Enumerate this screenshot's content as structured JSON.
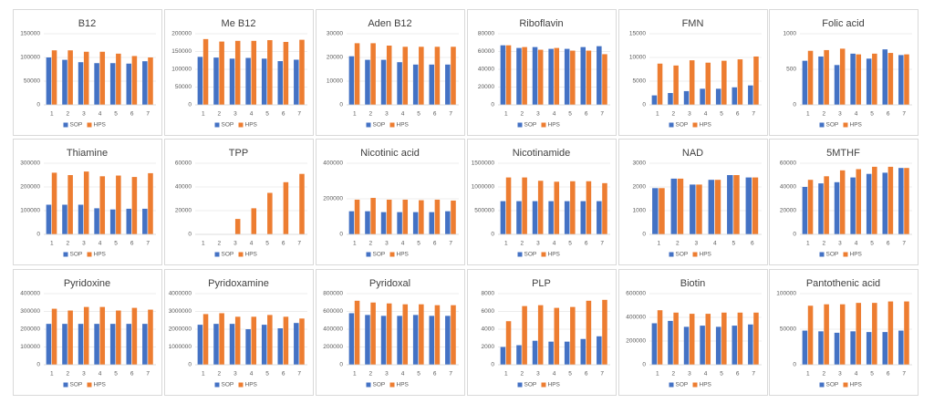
{
  "chart_data": [
    {
      "type": "bar",
      "title": "B12",
      "categories": [
        "1",
        "2",
        "3",
        "4",
        "5",
        "6",
        "7"
      ],
      "ylim": [
        0,
        150000
      ],
      "yticks": [
        0,
        50000,
        100000,
        150000
      ],
      "grid": true,
      "series": [
        {
          "name": "SOP",
          "color": "#4472c4",
          "values": [
            100000,
            95000,
            90000,
            88000,
            88000,
            87000,
            92000
          ]
        },
        {
          "name": "HPS",
          "color": "#ed7d31",
          "values": [
            115000,
            115000,
            112000,
            112000,
            108000,
            103000,
            100000
          ]
        }
      ]
    },
    {
      "type": "bar",
      "title": "Me B12",
      "categories": [
        "1",
        "2",
        "3",
        "4",
        "5",
        "6",
        "7"
      ],
      "ylim": [
        0,
        200000
      ],
      "yticks": [
        0,
        50000,
        100000,
        150000,
        200000
      ],
      "grid": true,
      "series": [
        {
          "name": "SOP",
          "color": "#4472c4",
          "values": [
            135000,
            133000,
            130000,
            132000,
            130000,
            123000,
            127000
          ]
        },
        {
          "name": "HPS",
          "color": "#ed7d31",
          "values": [
            185000,
            178000,
            180000,
            180000,
            182000,
            177000,
            183000
          ]
        }
      ]
    },
    {
      "type": "bar",
      "title": "Aden B12",
      "categories": [
        "1",
        "2",
        "3",
        "4",
        "5",
        "6",
        "7"
      ],
      "ylim": [
        0,
        30000
      ],
      "yticks": [
        0,
        10000,
        20000,
        30000
      ],
      "grid": true,
      "series": [
        {
          "name": "SOP",
          "color": "#4472c4",
          "values": [
            20500,
            19000,
            19000,
            18000,
            17000,
            17000,
            17000
          ]
        },
        {
          "name": "HPS",
          "color": "#ed7d31",
          "values": [
            26000,
            26000,
            25000,
            24500,
            24500,
            24500,
            24500
          ]
        }
      ]
    },
    {
      "type": "bar",
      "title": "Riboflavin",
      "categories": [
        "1",
        "2",
        "3",
        "4",
        "5",
        "6",
        "7"
      ],
      "ylim": [
        0,
        80000
      ],
      "yticks": [
        0,
        20000,
        40000,
        60000,
        80000
      ],
      "grid": true,
      "series": [
        {
          "name": "SOP",
          "color": "#4472c4",
          "values": [
            67000,
            64000,
            65000,
            63000,
            63000,
            65000,
            66000
          ]
        },
        {
          "name": "HPS",
          "color": "#ed7d31",
          "values": [
            67000,
            65000,
            62000,
            64000,
            61000,
            61000,
            57000
          ]
        }
      ]
    },
    {
      "type": "bar",
      "title": "FMN",
      "categories": [
        "1",
        "2",
        "3",
        "4",
        "5",
        "6",
        "7"
      ],
      "ylim": [
        0,
        15000
      ],
      "yticks": [
        0,
        5000,
        10000,
        15000
      ],
      "grid": true,
      "series": [
        {
          "name": "SOP",
          "color": "#4472c4",
          "values": [
            2000,
            2500,
            2900,
            3400,
            3400,
            3700,
            4100
          ]
        },
        {
          "name": "HPS",
          "color": "#ed7d31",
          "values": [
            8700,
            8300,
            9400,
            8900,
            9300,
            9600,
            10200
          ]
        }
      ]
    },
    {
      "type": "bar",
      "title": "Folic acid",
      "categories": [
        "1",
        "2",
        "3",
        "4",
        "5",
        "6",
        "7"
      ],
      "ylim": [
        0,
        1000
      ],
      "yticks": [
        0,
        500,
        1000
      ],
      "grid": true,
      "series": [
        {
          "name": "SOP",
          "color": "#4472c4",
          "values": [
            620,
            680,
            560,
            720,
            650,
            780,
            700
          ]
        },
        {
          "name": "HPS",
          "color": "#ed7d31",
          "values": [
            760,
            770,
            790,
            710,
            720,
            730,
            710
          ]
        }
      ]
    },
    {
      "type": "bar",
      "title": "Thiamine",
      "categories": [
        "1",
        "2",
        "3",
        "4",
        "5",
        "6",
        "7"
      ],
      "ylim": [
        0,
        300000
      ],
      "yticks": [
        0,
        100000,
        200000,
        300000
      ],
      "grid": true,
      "series": [
        {
          "name": "SOP",
          "color": "#4472c4",
          "values": [
            125000,
            125000,
            125000,
            110000,
            105000,
            108000,
            108000
          ]
        },
        {
          "name": "HPS",
          "color": "#ed7d31",
          "values": [
            260000,
            250000,
            265000,
            245000,
            248000,
            242000,
            258000
          ]
        }
      ]
    },
    {
      "type": "bar",
      "title": "TPP",
      "categories": [
        "1",
        "2",
        "3",
        "4",
        "5",
        "6",
        "7"
      ],
      "ylim": [
        0,
        60000
      ],
      "yticks": [
        0,
        20000,
        40000,
        60000
      ],
      "grid": true,
      "series": [
        {
          "name": "SOP",
          "color": "#4472c4",
          "values": [
            0,
            0,
            0,
            0,
            0,
            0,
            0
          ]
        },
        {
          "name": "HPS",
          "color": "#ed7d31",
          "values": [
            0,
            0,
            13000,
            22000,
            35000,
            44000,
            51000
          ]
        }
      ]
    },
    {
      "type": "bar",
      "title": "Nicotinic acid",
      "categories": [
        "1",
        "2",
        "3",
        "4",
        "5",
        "6",
        "7"
      ],
      "ylim": [
        0,
        400000
      ],
      "yticks": [
        0,
        200000,
        400000
      ],
      "grid": true,
      "series": [
        {
          "name": "SOP",
          "color": "#4472c4",
          "values": [
            130000,
            130000,
            125000,
            125000,
            125000,
            125000,
            130000
          ]
        },
        {
          "name": "HPS",
          "color": "#ed7d31",
          "values": [
            195000,
            205000,
            195000,
            195000,
            192000,
            195000,
            190000
          ]
        }
      ]
    },
    {
      "type": "bar",
      "title": "Nicotinamide",
      "categories": [
        "1",
        "2",
        "3",
        "4",
        "5",
        "6",
        "7"
      ],
      "ylim": [
        0,
        1500000
      ],
      "yticks": [
        0,
        500000,
        1000000,
        1500000
      ],
      "grid": true,
      "series": [
        {
          "name": "SOP",
          "color": "#4472c4",
          "values": [
            700000,
            700000,
            700000,
            700000,
            700000,
            700000,
            700000
          ]
        },
        {
          "name": "HPS",
          "color": "#ed7d31",
          "values": [
            1200000,
            1200000,
            1130000,
            1110000,
            1120000,
            1120000,
            1080000
          ]
        }
      ]
    },
    {
      "type": "bar",
      "title": "NAD",
      "categories": [
        "1",
        "2",
        "3",
        "4",
        "5",
        "6"
      ],
      "ylim": [
        0,
        3000
      ],
      "yticks": [
        0,
        1000,
        2000,
        3000
      ],
      "grid": true,
      "series": [
        {
          "name": "SOP",
          "color": "#4472c4",
          "values": [
            1950,
            2350,
            2100,
            2300,
            2500,
            2400
          ]
        },
        {
          "name": "HPS",
          "color": "#ed7d31",
          "values": [
            1950,
            2350,
            2100,
            2300,
            2500,
            2400
          ]
        }
      ]
    },
    {
      "type": "bar",
      "title": "5MTHF",
      "categories": [
        "1",
        "2",
        "3",
        "4",
        "5",
        "6",
        "7"
      ],
      "ylim": [
        0,
        60000
      ],
      "yticks": [
        0,
        20000,
        40000,
        60000
      ],
      "grid": true,
      "series": [
        {
          "name": "SOP",
          "color": "#4472c4",
          "values": [
            40000,
            43000,
            44000,
            48000,
            51000,
            52000,
            56000
          ]
        },
        {
          "name": "HPS",
          "color": "#ed7d31",
          "values": [
            46000,
            49000,
            54000,
            55000,
            57000,
            57000,
            56000
          ]
        }
      ]
    },
    {
      "type": "bar",
      "title": "Pyridoxine",
      "categories": [
        "1",
        "2",
        "3",
        "4",
        "5",
        "6",
        "7"
      ],
      "ylim": [
        0,
        400000
      ],
      "yticks": [
        0,
        100000,
        200000,
        300000,
        400000
      ],
      "grid": true,
      "series": [
        {
          "name": "SOP",
          "color": "#4472c4",
          "values": [
            230000,
            230000,
            230000,
            230000,
            230000,
            230000,
            230000
          ]
        },
        {
          "name": "HPS",
          "color": "#ed7d31",
          "values": [
            315000,
            305000,
            325000,
            325000,
            305000,
            320000,
            310000
          ]
        }
      ]
    },
    {
      "type": "bar",
      "title": "Pyridoxamine",
      "categories": [
        "1",
        "2",
        "3",
        "4",
        "5",
        "6",
        "7"
      ],
      "ylim": [
        0,
        4000000
      ],
      "yticks": [
        0,
        1000000,
        2000000,
        3000000,
        4000000
      ],
      "grid": true,
      "series": [
        {
          "name": "SOP",
          "color": "#4472c4",
          "values": [
            2250000,
            2300000,
            2300000,
            2000000,
            2250000,
            2050000,
            2350000
          ]
        },
        {
          "name": "HPS",
          "color": "#ed7d31",
          "values": [
            2850000,
            2900000,
            2700000,
            2700000,
            2800000,
            2700000,
            2600000
          ]
        }
      ]
    },
    {
      "type": "bar",
      "title": "Pyridoxal",
      "categories": [
        "1",
        "2",
        "3",
        "4",
        "5",
        "6",
        "7"
      ],
      "ylim": [
        0,
        800000
      ],
      "yticks": [
        0,
        200000,
        400000,
        600000,
        800000
      ],
      "grid": true,
      "series": [
        {
          "name": "SOP",
          "color": "#4472c4",
          "values": [
            580000,
            560000,
            550000,
            550000,
            560000,
            550000,
            550000
          ]
        },
        {
          "name": "HPS",
          "color": "#ed7d31",
          "values": [
            720000,
            700000,
            690000,
            680000,
            680000,
            670000,
            670000
          ]
        }
      ]
    },
    {
      "type": "bar",
      "title": "PLP",
      "categories": [
        "1",
        "2",
        "3",
        "4",
        "5",
        "6",
        "7"
      ],
      "ylim": [
        0,
        8000
      ],
      "yticks": [
        0,
        2000,
        4000,
        6000,
        8000
      ],
      "grid": true,
      "series": [
        {
          "name": "SOP",
          "color": "#4472c4",
          "values": [
            2000,
            2200,
            2700,
            2600,
            2600,
            2900,
            3200
          ]
        },
        {
          "name": "HPS",
          "color": "#ed7d31",
          "values": [
            4900,
            6600,
            6700,
            6400,
            6500,
            7200,
            7300
          ]
        }
      ]
    },
    {
      "type": "bar",
      "title": "Biotin",
      "categories": [
        "1",
        "2",
        "3",
        "4",
        "5",
        "6",
        "7"
      ],
      "ylim": [
        0,
        600000
      ],
      "yticks": [
        0,
        200000,
        400000,
        600000
      ],
      "grid": true,
      "series": [
        {
          "name": "SOP",
          "color": "#4472c4",
          "values": [
            350000,
            370000,
            320000,
            330000,
            320000,
            330000,
            340000
          ]
        },
        {
          "name": "HPS",
          "color": "#ed7d31",
          "values": [
            460000,
            440000,
            430000,
            430000,
            440000,
            440000,
            440000
          ]
        }
      ]
    },
    {
      "type": "bar",
      "title": "Pantothenic acid",
      "categories": [
        "1",
        "2",
        "3",
        "4",
        "5",
        "6",
        "7"
      ],
      "ylim": [
        0,
        100000
      ],
      "yticks": [
        0,
        50000,
        100000
      ],
      "grid": true,
      "series": [
        {
          "name": "SOP",
          "color": "#4472c4",
          "values": [
            48000,
            47000,
            45000,
            47000,
            46000,
            46000,
            48000
          ]
        },
        {
          "name": "HPS",
          "color": "#ed7d31",
          "values": [
            83000,
            85000,
            85000,
            87000,
            87000,
            89000,
            89000
          ]
        }
      ]
    }
  ]
}
